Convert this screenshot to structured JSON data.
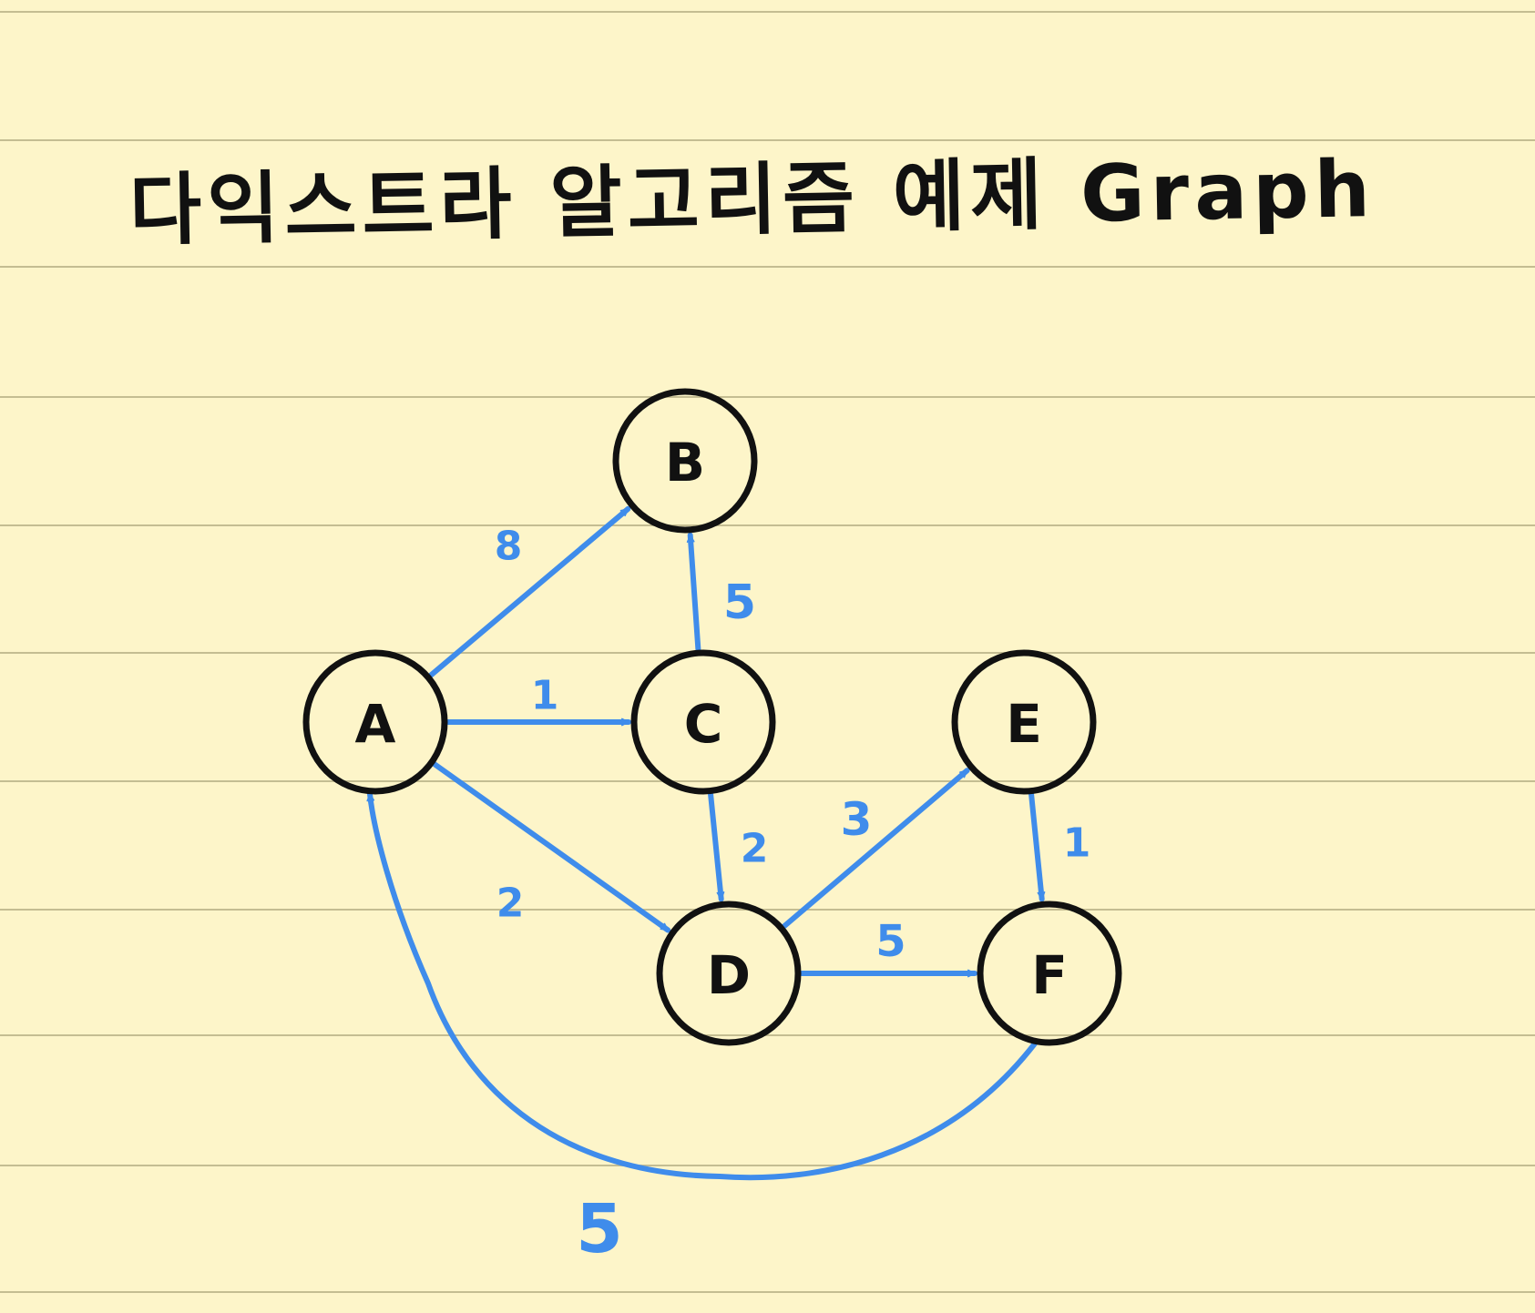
{
  "title": "다익스트라 알고리즘 예제 Graph",
  "colors": {
    "background": "#fdf5c9",
    "rule": "#c4bd92",
    "edge": "#3f8ceb",
    "node_stroke": "#111111",
    "text": "#111111"
  },
  "nodes": [
    {
      "id": "A",
      "label": "A"
    },
    {
      "id": "B",
      "label": "B"
    },
    {
      "id": "C",
      "label": "C"
    },
    {
      "id": "D",
      "label": "D"
    },
    {
      "id": "E",
      "label": "E"
    },
    {
      "id": "F",
      "label": "F"
    }
  ],
  "edges": [
    {
      "from": "A",
      "to": "B",
      "weight": "8"
    },
    {
      "from": "A",
      "to": "C",
      "weight": "1"
    },
    {
      "from": "A",
      "to": "D",
      "weight": "2"
    },
    {
      "from": "C",
      "to": "B",
      "weight": "5"
    },
    {
      "from": "C",
      "to": "D",
      "weight": "2"
    },
    {
      "from": "D",
      "to": "E",
      "weight": "3"
    },
    {
      "from": "D",
      "to": "F",
      "weight": "5"
    },
    {
      "from": "E",
      "to": "F",
      "weight": "1"
    },
    {
      "from": "F",
      "to": "A",
      "weight": "5"
    }
  ]
}
